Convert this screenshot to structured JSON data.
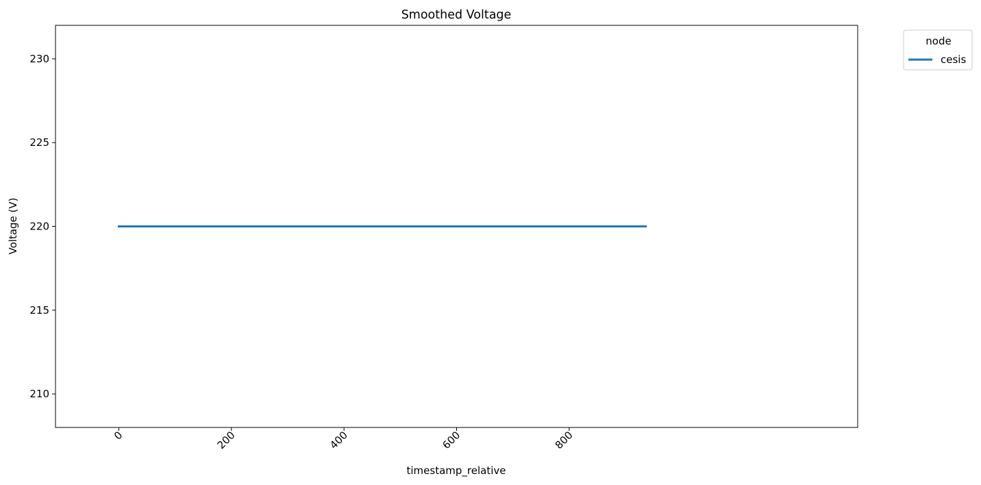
{
  "chart_data": {
    "type": "line",
    "title": "Smoothed Voltage",
    "xlabel": "timestamp_relative",
    "ylabel": "Voltage (V)",
    "xlim": [
      -112.5,
      1312.5
    ],
    "ylim": [
      208,
      232
    ],
    "x_ticks": [
      0,
      200,
      400,
      600,
      800
    ],
    "y_ticks": [
      210,
      215,
      220,
      225,
      230
    ],
    "x_tick_rotation": 45,
    "grid": false,
    "legend": {
      "title": "node",
      "placement": "outside-top-right"
    },
    "series": [
      {
        "name": "cesis",
        "color": "#1f77b4",
        "x": [
          0,
          936
        ],
        "y": [
          220,
          220
        ]
      }
    ]
  }
}
